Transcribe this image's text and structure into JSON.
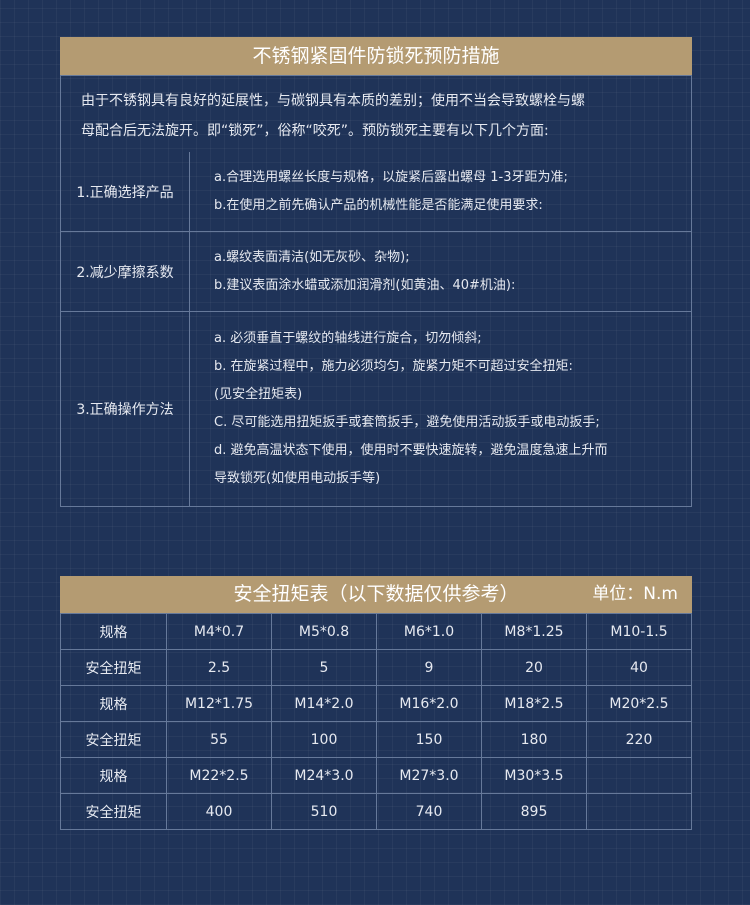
{
  "section1": {
    "title": "不锈钢紧固件防锁死预防措施",
    "intro": [
      "由于不锈钢具有良好的延展性，与碳钢具有本质的差别；使用不当会导致螺栓与螺",
      "母配合后无法旋开。即“锁死”，俗称“咬死”。预防锁死主要有以下几个方面:"
    ],
    "rows": [
      {
        "label": "1.正确选择产品",
        "lines": [
          "a.合理选用螺丝长度与规格，以旋紧后露出螺母 1-3牙距为准;",
          "b.在使用之前先确认产品的机械性能是否能满足使用要求:"
        ]
      },
      {
        "label": "2.减少摩擦系数",
        "lines": [
          "a.螺纹表面清洁(如无灰砂、杂物);",
          "b.建议表面涂水蜡或添加润滑剂(如黄油、40#机油):"
        ]
      },
      {
        "label": "3.正确操作方法",
        "lines": [
          "a. 必须垂直于螺纹的轴线进行旋合，切勿倾斜;",
          "b. 在旋紧过程中，施力必须均匀，旋紧力矩不可超过安全扭矩:",
          "(见安全扭矩表)",
          "C. 尽可能选用扭矩扳手或套筒扳手，避免使用活动扳手或电动扳手;",
          "d. 避免高温状态下使用，使用时不要快速旋转，避免温度急速上升而",
          "导致锁死(如使用电动扳手等)"
        ]
      }
    ]
  },
  "section2": {
    "title": "安全扭矩表（以下数据仅供参考）",
    "unit": "单位：N.m",
    "rows": [
      [
        "规格",
        "M4*0.7",
        "M5*0.8",
        "M6*1.0",
        "M8*1.25",
        "M10-1.5"
      ],
      [
        "安全扭矩",
        "2.5",
        "5",
        "9",
        "20",
        "40"
      ],
      [
        "规格",
        "M12*1.75",
        "M14*2.0",
        "M16*2.0",
        "M18*2.5",
        "M20*2.5"
      ],
      [
        "安全扭矩",
        "55",
        "100",
        "150",
        "180",
        "220"
      ],
      [
        "规格",
        "M22*2.5",
        "M24*3.0",
        "M27*3.0",
        "M30*3.5",
        ""
      ],
      [
        "安全扭矩",
        "400",
        "510",
        "740",
        "895",
        ""
      ]
    ]
  },
  "colors": {
    "background": "#1f3358",
    "header": "#b49b72",
    "grid": "#66799a"
  }
}
